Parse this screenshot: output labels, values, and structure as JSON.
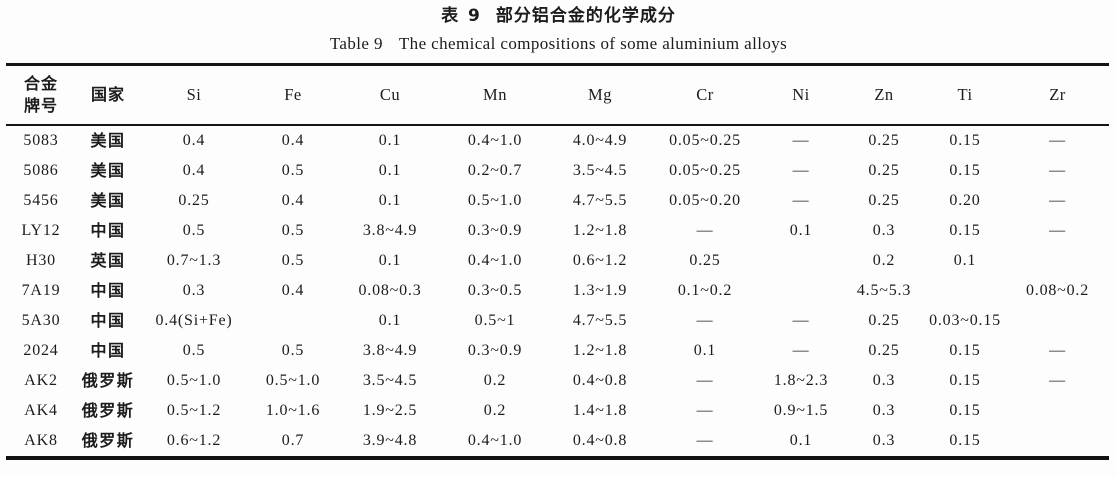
{
  "caption_cn": {
    "label": "表 9",
    "text": "部分铝合金的化学成分"
  },
  "caption_en": {
    "label": "Table 9",
    "text": "The chemical compositions of some aluminium alloys"
  },
  "table": {
    "columns": [
      {
        "key": "alloy",
        "label": "合金牌号",
        "lines": [
          "合金",
          "牌号"
        ]
      },
      {
        "key": "country",
        "label": "国家"
      },
      {
        "key": "si",
        "label": "Si"
      },
      {
        "key": "fe",
        "label": "Fe"
      },
      {
        "key": "cu",
        "label": "Cu"
      },
      {
        "key": "mn",
        "label": "Mn"
      },
      {
        "key": "mg",
        "label": "Mg"
      },
      {
        "key": "cr",
        "label": "Cr"
      },
      {
        "key": "ni",
        "label": "Ni"
      },
      {
        "key": "zn",
        "label": "Zn"
      },
      {
        "key": "ti",
        "label": "Ti"
      },
      {
        "key": "zr",
        "label": "Zr"
      }
    ],
    "rows": [
      [
        "5083",
        "美国",
        "0.4",
        "0.4",
        "0.1",
        "0.4~1.0",
        "4.0~4.9",
        "0.05~0.25",
        "—",
        "0.25",
        "0.15",
        "—"
      ],
      [
        "5086",
        "美国",
        "0.4",
        "0.5",
        "0.1",
        "0.2~0.7",
        "3.5~4.5",
        "0.05~0.25",
        "—",
        "0.25",
        "0.15",
        "—"
      ],
      [
        "5456",
        "美国",
        "0.25",
        "0.4",
        "0.1",
        "0.5~1.0",
        "4.7~5.5",
        "0.05~0.20",
        "—",
        "0.25",
        "0.20",
        "—"
      ],
      [
        "LY12",
        "中国",
        "0.5",
        "0.5",
        "3.8~4.9",
        "0.3~0.9",
        "1.2~1.8",
        "—",
        "0.1",
        "0.3",
        "0.15",
        "—"
      ],
      [
        "H30",
        "英国",
        "0.7~1.3",
        "0.5",
        "0.1",
        "0.4~1.0",
        "0.6~1.2",
        "0.25",
        "",
        "0.2",
        "0.1",
        ""
      ],
      [
        "7A19",
        "中国",
        "0.3",
        "0.4",
        "0.08~0.3",
        "0.3~0.5",
        "1.3~1.9",
        "0.1~0.2",
        "",
        "4.5~5.3",
        "",
        "0.08~0.2"
      ],
      [
        "5A30",
        "中国",
        "0.4(Si+Fe)",
        "",
        "0.1",
        "0.5~1",
        "4.7~5.5",
        "—",
        "—",
        "0.25",
        "0.03~0.15",
        ""
      ],
      [
        "2024",
        "中国",
        "0.5",
        "0.5",
        "3.8~4.9",
        "0.3~0.9",
        "1.2~1.8",
        "0.1",
        "—",
        "0.25",
        "0.15",
        "—"
      ],
      [
        "AK2",
        "俄罗斯",
        "0.5~1.0",
        "0.5~1.0",
        "3.5~4.5",
        "0.2",
        "0.4~0.8",
        "—",
        "1.8~2.3",
        "0.3",
        "0.15",
        "—"
      ],
      [
        "AK4",
        "俄罗斯",
        "0.5~1.2",
        "1.0~1.6",
        "1.9~2.5",
        "0.2",
        "1.4~1.8",
        "—",
        "0.9~1.5",
        "0.3",
        "0.15",
        ""
      ],
      [
        "AK8",
        "俄罗斯",
        "0.6~1.2",
        "0.7",
        "3.9~4.8",
        "0.4~1.0",
        "0.4~0.8",
        "—",
        "0.1",
        "0.3",
        "0.15",
        ""
      ]
    ]
  }
}
